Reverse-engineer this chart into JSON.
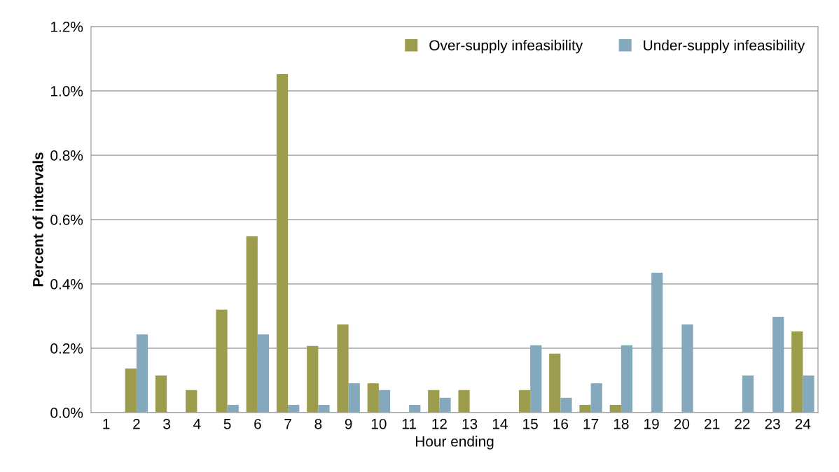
{
  "chart_data": {
    "type": "bar",
    "xlabel": "Hour ending",
    "ylabel": "Percent of intervals",
    "categories": [
      "1",
      "2",
      "3",
      "4",
      "5",
      "6",
      "7",
      "8",
      "9",
      "10",
      "11",
      "12",
      "13",
      "14",
      "15",
      "16",
      "17",
      "18",
      "19",
      "20",
      "21",
      "22",
      "23",
      "24"
    ],
    "series": [
      {
        "name": "Over-supply infeasibility",
        "color": "#9c9c4c",
        "values": [
          0,
          0.137,
          0.115,
          0.07,
          0.32,
          0.548,
          1.052,
          0.207,
          0.274,
          0.091,
          0,
          0.07,
          0.07,
          0,
          0.07,
          0.183,
          0.024,
          0.024,
          0,
          0,
          0,
          0,
          0,
          0.252
        ]
      },
      {
        "name": "Under-supply infeasibility",
        "color": "#84a8bc",
        "values": [
          0,
          0.243,
          0,
          0,
          0.024,
          0.243,
          0.024,
          0.024,
          0.091,
          0.07,
          0.024,
          0.046,
          0,
          0,
          0.209,
          0.046,
          0.091,
          0.209,
          0.435,
          0.274,
          0,
          0.115,
          0.298,
          0.115
        ]
      }
    ],
    "ylim": [
      0,
      1.2
    ],
    "yticks": [
      {
        "value": 0,
        "label": "0.0%"
      },
      {
        "value": 0.2,
        "label": "0.2%"
      },
      {
        "value": 0.4,
        "label": "0.4%"
      },
      {
        "value": 0.6,
        "label": "0.6%"
      },
      {
        "value": 0.8,
        "label": "0.8%"
      },
      {
        "value": 1.0,
        "label": "1.0%"
      },
      {
        "value": 1.2,
        "label": "1.2%"
      }
    ],
    "grid": "y",
    "legend": "top right"
  }
}
